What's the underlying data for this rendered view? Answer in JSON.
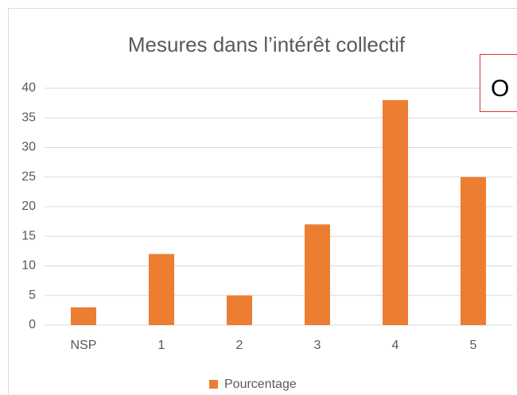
{
  "chart_data": {
    "type": "bar",
    "title": "Mesures dans l’intérêt collectif",
    "categories": [
      "NSP",
      "1",
      "2",
      "3",
      "4",
      "5"
    ],
    "series": [
      {
        "name": "Pourcentage",
        "color": "#ed7d31",
        "values": [
          3,
          12,
          5,
          17,
          38,
          25
        ]
      }
    ],
    "ylim": [
      0,
      40
    ],
    "yticks": [
      0,
      5,
      10,
      15,
      20,
      25,
      30,
      35,
      40
    ],
    "grid": true,
    "legend": "bottom",
    "annotation": "O"
  }
}
